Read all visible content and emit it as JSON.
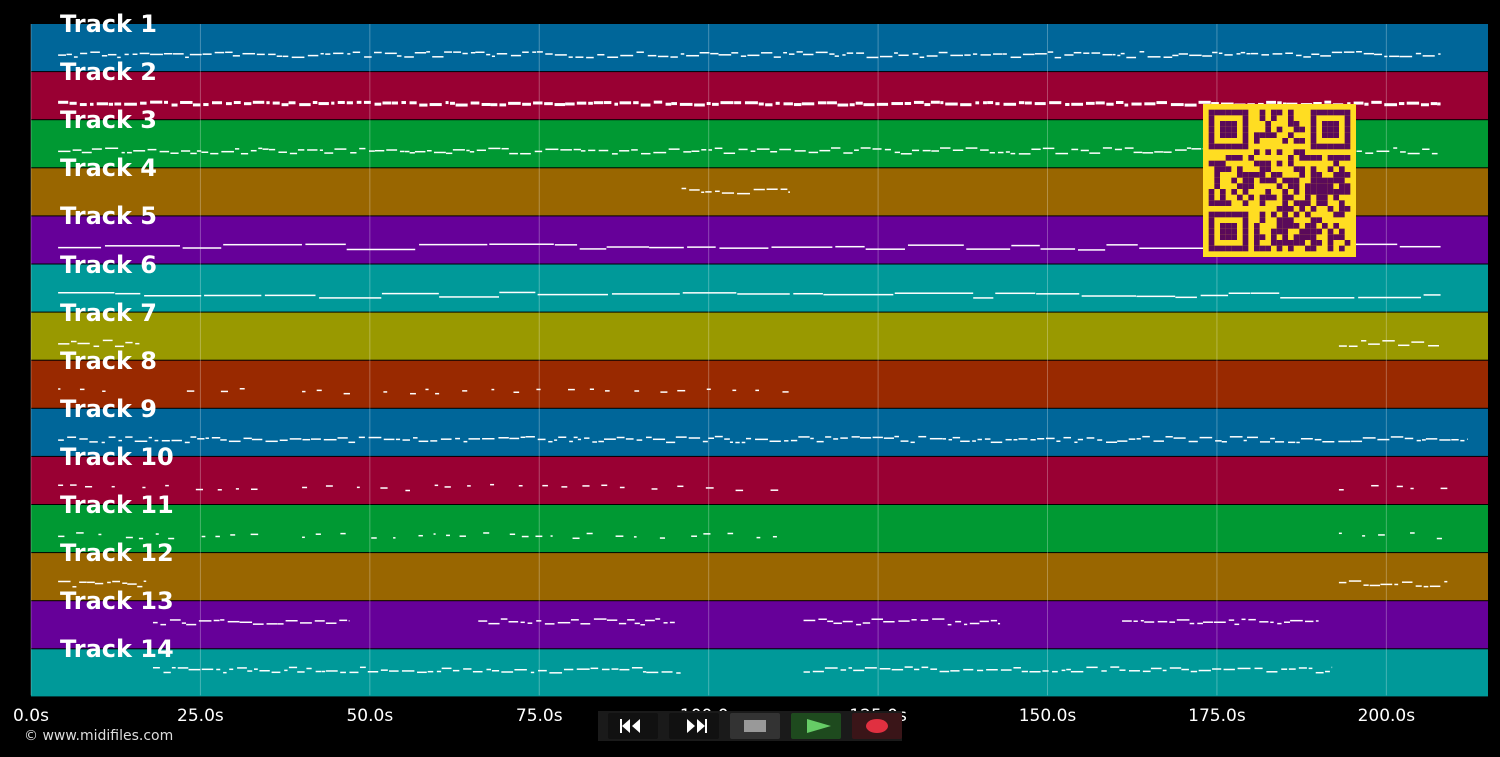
{
  "tracks": [
    {
      "label": "Track 1",
      "color": "#006699"
    },
    {
      "label": "Track 2",
      "color": "#990033"
    },
    {
      "label": "Track 3",
      "color": "#009933"
    },
    {
      "label": "Track 4",
      "color": "#996600"
    },
    {
      "label": "Track 5",
      "color": "#660099"
    },
    {
      "label": "Track 6",
      "color": "#009999"
    },
    {
      "label": "Track 7",
      "color": "#999900"
    },
    {
      "label": "Track 8",
      "color": "#992900"
    },
    {
      "label": "Track 9",
      "color": "#006699"
    },
    {
      "label": "Track 10",
      "color": "#990033"
    },
    {
      "label": "Track 11",
      "color": "#009933"
    },
    {
      "label": "Track 12",
      "color": "#996600"
    },
    {
      "label": "Track 13",
      "color": "#660099"
    },
    {
      "label": "Track 14",
      "color": "#009999"
    }
  ],
  "timeline": {
    "max_seconds": 215,
    "ticks": [
      {
        "value": 0,
        "label": "0.0s"
      },
      {
        "value": 25,
        "label": "25.0s"
      },
      {
        "value": 50,
        "label": "50.0s"
      },
      {
        "value": 75,
        "label": "75.0s"
      },
      {
        "value": 100,
        "label": "100.0s"
      },
      {
        "value": 125,
        "label": "125.0s"
      },
      {
        "value": 150,
        "label": "150.0s"
      },
      {
        "value": 175,
        "label": "175.0s"
      },
      {
        "value": 200,
        "label": "200.0s"
      }
    ]
  },
  "transport": {
    "rewind_icon": "rewind-icon",
    "fast_forward_icon": "fast-forward-icon",
    "stop_icon": "stop-icon",
    "play_icon": "play-icon",
    "record_icon": "record-icon",
    "play_color": "#66cc66",
    "record_color": "#e03040"
  },
  "qr_code": {
    "color_fg": "#5a0a5a",
    "color_bg": "#ffdd22"
  },
  "copyright": "© www.midifiles.com"
}
